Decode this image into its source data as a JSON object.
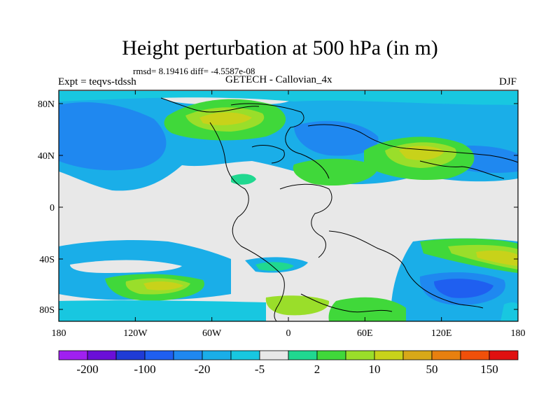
{
  "title": "Height perturbation at 500 hPa (in m)",
  "stats": "rmsd= 8.19416 diff= -4.5587e-08",
  "left_label": "Expt = teqvs-tdssh",
  "center_label": "GETECH - Callovian_4x",
  "right_label": "DJF",
  "y_ticks": [
    "80N",
    "40N",
    "0",
    "40S",
    "80S"
  ],
  "x_ticks": [
    "180",
    "120W",
    "60W",
    "0",
    "60E",
    "120E",
    "180"
  ],
  "colorbar": {
    "colors": [
      "#a020f0",
      "#6a0fd8",
      "#1f3bd6",
      "#1f5ff0",
      "#1f88f0",
      "#1aaee8",
      "#18c7e0",
      "#e8e8e8",
      "#20d890",
      "#40d83a",
      "#9ade2a",
      "#c8d21a",
      "#d8a818",
      "#e8800f",
      "#f0500a",
      "#e01010"
    ],
    "labels": [
      "-200",
      "-100",
      "-20",
      "-5",
      "2",
      "10",
      "50",
      "150"
    ]
  }
}
